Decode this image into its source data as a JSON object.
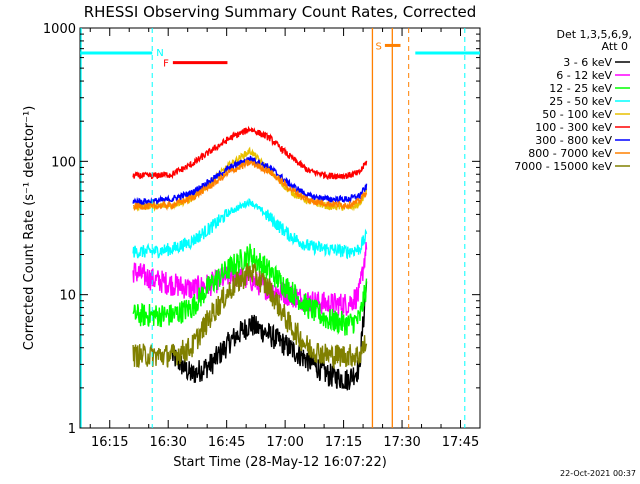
{
  "chart_data": {
    "type": "line",
    "title": "RHESSI Observing Summary Count Rates, Corrected",
    "xlabel": "Start Time (28-May-12 16:07:22)",
    "ylabel": "Corrected Count Rate (s⁻¹ detector⁻¹)",
    "y_scale": "log",
    "ylim": [
      1,
      1000
    ],
    "y_ticks": [
      "1",
      "10",
      "100",
      "1000"
    ],
    "x_ticks": [
      "16:15",
      "16:30",
      "16:45",
      "17:00",
      "17:15",
      "17:30",
      "17:45"
    ],
    "x_tick_minutes": [
      15,
      30,
      45,
      60,
      75,
      90,
      105
    ],
    "xlim_minutes": [
      7.37,
      110
    ],
    "grid": false,
    "legend_placement": "top-right",
    "legend_header": [
      "Det 1,3,5,6,9,",
      "Att 0"
    ],
    "date_stamp": "22-Oct-2021 00:37",
    "data_start_minute": 21,
    "data_end_minute": 81,
    "series": [
      {
        "name": "3 - 6 keV",
        "color": "#000000",
        "x": [
          21,
          26,
          31,
          36,
          41,
          46,
          51,
          56,
          61,
          66,
          71,
          76,
          79,
          81
        ],
        "y": [
          null,
          null,
          3.5,
          2.5,
          3,
          4.5,
          6,
          5,
          4,
          3.2,
          2.5,
          2.3,
          2.8,
          13
        ]
      },
      {
        "name": "6 - 12 keV",
        "color": "#ff00ff",
        "x": [
          21,
          26,
          31,
          36,
          41,
          46,
          51,
          56,
          61,
          66,
          71,
          76,
          79,
          81
        ],
        "y": [
          15,
          13,
          12,
          11,
          12,
          14,
          13,
          11,
          10,
          9,
          8.5,
          8.5,
          10,
          25
        ]
      },
      {
        "name": "12 - 25 keV",
        "color": "#00ff00",
        "x": [
          21,
          26,
          31,
          36,
          41,
          46,
          51,
          56,
          61,
          66,
          71,
          76,
          79,
          81
        ],
        "y": [
          7,
          7,
          7,
          8,
          12,
          16,
          20,
          15,
          11,
          8,
          6.5,
          6,
          6.5,
          12
        ]
      },
      {
        "name": "25 - 50 keV",
        "color": "#00ffff",
        "x": [
          21,
          26,
          31,
          36,
          41,
          46,
          51,
          56,
          61,
          66,
          71,
          76,
          79,
          81
        ],
        "y": [
          21,
          21,
          22,
          25,
          32,
          42,
          50,
          38,
          28,
          23,
          22,
          21,
          22,
          28
        ]
      },
      {
        "name": "50 - 100 keV",
        "color": "#e8c000",
        "x": [
          21,
          26,
          31,
          36,
          41,
          46,
          51,
          56,
          61,
          66,
          71,
          76,
          79,
          81
        ],
        "y": [
          46,
          46,
          47,
          52,
          70,
          95,
          120,
          85,
          60,
          50,
          46,
          45,
          47,
          60
        ]
      },
      {
        "name": "100 - 300 keV",
        "color": "#ff0000",
        "x": [
          21,
          26,
          31,
          36,
          41,
          46,
          51,
          56,
          61,
          66,
          71,
          76,
          79,
          81
        ],
        "y": [
          78,
          78,
          80,
          95,
          120,
          150,
          175,
          150,
          110,
          85,
          78,
          78,
          82,
          100
        ]
      },
      {
        "name": "300 - 800 keV",
        "color": "#0000ff",
        "x": [
          21,
          26,
          31,
          36,
          41,
          46,
          51,
          56,
          61,
          66,
          71,
          76,
          79,
          81
        ],
        "y": [
          50,
          50,
          52,
          58,
          72,
          90,
          105,
          90,
          68,
          55,
          52,
          52,
          55,
          65
        ]
      },
      {
        "name": "800 - 7000 keV",
        "color": "#ff8000",
        "x": [
          21,
          26,
          31,
          36,
          41,
          46,
          51,
          56,
          61,
          66,
          71,
          76,
          79,
          81
        ],
        "y": [
          46,
          46,
          47,
          53,
          66,
          84,
          98,
          84,
          63,
          51,
          48,
          47,
          50,
          60
        ]
      },
      {
        "name": "7000 - 15000 keV",
        "color": "#808000",
        "x": [
          21,
          26,
          31,
          36,
          41,
          46,
          51,
          56,
          61,
          66,
          71,
          76,
          79,
          81
        ],
        "y": [
          3.5,
          3.5,
          3.5,
          4,
          7,
          11,
          15,
          11,
          6,
          4,
          3.5,
          3.5,
          3.5,
          4.5
        ]
      }
    ],
    "annotations": [
      {
        "label": "N",
        "color": "#00ffff",
        "x_start": 7.4,
        "x_end": 25.9,
        "y": 650,
        "dashed_at": [
          25.9
        ]
      },
      {
        "label": "",
        "color": "#00ffff",
        "x_start": 93.4,
        "x_end": 110,
        "y": 650,
        "dashed_at": [
          106.1
        ]
      },
      {
        "label": "F",
        "color": "#ff0000",
        "x_start": 31.2,
        "x_end": 45.2,
        "y": 550
      },
      {
        "label": "S",
        "color": "#ff8000",
        "x_start": 85.6,
        "x_end": 89.6,
        "y": 740,
        "solid_at": [
          82.4,
          87.5
        ],
        "dashed_at": [
          91.7
        ]
      }
    ]
  }
}
